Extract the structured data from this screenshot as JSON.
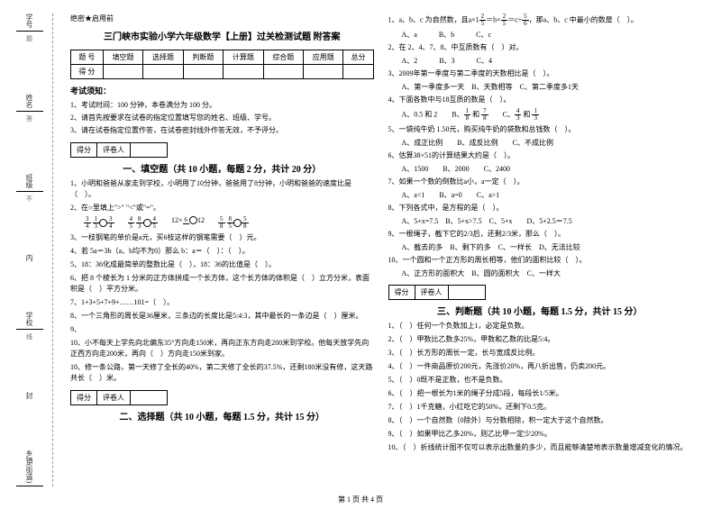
{
  "confidential": "绝密★启用前",
  "title": "三门峡市实验小学六年级数学【上册】过关检测试题 附答案",
  "scoreTable": {
    "headers": [
      "题 号",
      "填空题",
      "选择题",
      "判断题",
      "计算题",
      "综合题",
      "应用题",
      "总分"
    ],
    "row2": "得 分"
  },
  "noticeTitle": "考试须知：",
  "notices": [
    "1、考试时间：100 分钟，本卷满分为 100 分。",
    "2、请首先按要求在试卷的指定位置填写您的姓名、班级、学号。",
    "3、请在试卷指定位置作答，在试卷密封线外作答无效，不予评分。"
  ],
  "scorerLabels": {
    "a": "得分",
    "b": "评卷人"
  },
  "section1": "一、填空题（共 10 小题，每题 2 分，共计 20 分）",
  "q1_1": "1、小明和爸爸从家走到学校，小明用了10分钟，爸爸用了8分钟，小明和爸爸的速度比是（　）。",
  "q1_2": "2、在○里填上\">\" \"<\"或\"=\"。",
  "q1_3": "3、一枝钢笔的单价是a元，买6枝这样的钢笔需要（　）元。",
  "q1_4": "4、若 5a＝3b（a、b均不为0）那么 b：a＝（　）：（　）。",
  "q1_5": "5、18：36化成最简单的整数比是（　），18：36的比值是（　）。",
  "q1_6": "6、把 8 个棱长为 1 分米的正方体拼成一个长方体，这个长方体的体积是（　）立方分米，表面积是（　）平方分米。",
  "q1_7": "7、1+3+5+7+9+……101=（　）。",
  "q1_8": "8、一个三角形的周长是36厘米，三条边的长度比是5:4:3，其中最长的一条边是（　）厘米。",
  "q1_9": "9、",
  "q1_10a": "10、小不每天上学先向北偏东35°方向走150米，再向正东方向走200米到学校。他每天放学先向正西方向走200米，再向（　）方向走150米到家。",
  "q1_10b": "10、修一条公路，第一天修了全长的40%，第二天修了全长的37.5%，还剩180米没有修，这天路共长（　）米。",
  "section2": "二、选择题（共 10 小题，每题 1.5 分，共计 15 分）",
  "q2_1": "1、a、b、c 为自然数，且a×1",
  "q2_1b": "，那a、b、c 中最小的数是（　）。",
  "q2_1opts": "A、a　　　B、b　　　C、c",
  "q2_2": "2、在 2、4、7、8、中互质数有（　）对。",
  "q2_2opts": "A、2　　　B、3　　　C、4",
  "q2_3": "3、2009年第一季度与第二季度的天数相比是（　）。",
  "q2_3opts": "A、第一季度多一天　B、天数相等　C、第二季度多1天",
  "q2_4": "4、下面各数中与18互质的数是（　）。",
  "q2_5": "5、一袋纯牛奶 1.50元，购买纯牛奶的袋数和总钱数（　）。",
  "q2_5opts": "A、成正比例　　B、成反比例　　C、不成比例",
  "q2_6": "6、估算38×51的计算结果大约是（　）。",
  "q2_6opts": "A、1500　　B、2000　　C、2400",
  "q2_7": "7、如果一个数的倒数比a小，a一定（　）。",
  "q2_7opts": "A、a<1　　B、a=0　　C、a>1",
  "q2_8": "8、下列各式中，是方程的是（　）。",
  "q2_8opts": "A、5+x=7.5　B、5+x>7.5　C、5+x　　D、5+2.5＝7.5",
  "q2_9": "9、一根绳子，截下它的2/3后，还剩2/3米，那么（　）。",
  "q2_9opts": "A、截去的多　B、剩下的多　C、一样长　D、无法比较",
  "q2_10": "10、一个圆和一个正方形的周长相等，他们的面积比较（　）。",
  "q2_10opts": "A、正方形的面积大　B、圆的面积大　C、一样大",
  "section3": "三、判断题（共 10 小题，每题 1.5 分，共计 15 分）",
  "q3_1": "1、（　）任何一个负数加上1，必定是负数。",
  "q3_2": "2、（　）甲数比乙数多25%，甲数和乙数的比是5:4。",
  "q3_3": "3、（　）长方形的周长一定，长与宽成反比例。",
  "q3_4": "4、（　）一件商品原价200元，先涨价20%，再八折出售，仍卖200元。",
  "q3_5": "5、（　）0既不是正数，也不是负数。",
  "q3_6": "6、（　）把一根长为1米的绳子分成5段，每段长1/5米。",
  "q3_7": "7、（　）1千克糖，小红吃它的50%，还剩下0.5克。",
  "q3_8": "8、（　）一个自然数（0除外）与分数相除，积一定大于这个自然数。",
  "q3_9": "9、（　）如果甲比乙多20%，则乙比甲一定少20%。",
  "q3_10": "10、（　）折线统计图不仅可以表示出数量的多少，而且能够清楚地表示数量增减变化的情况。",
  "footer": "第 1 页 共 4 页",
  "side": {
    "xuehao": "学号",
    "xingming": "姓名",
    "banji": "班级",
    "xuexiao": "学校",
    "xiangzhen": "乡镇(街道)",
    "ti": "题",
    "da": "答",
    "nei": "内",
    "xian": "线",
    "feng": "封"
  },
  "fracRow": [
    {
      "a": "3",
      "b": "4",
      "op": "",
      "c": "1",
      "d": "3",
      "e": "3",
      "f": "4"
    },
    {
      "a": "4",
      "b": "5",
      "op": "",
      "c": "8",
      "d": "3",
      "e": "4",
      "f": "5"
    },
    {
      "a": "",
      "b": "",
      "op": "12×",
      "c": "6",
      "d": "",
      "e": "",
      "f": "12"
    },
    {
      "a": "5",
      "b": "8",
      "op": "",
      "c": "8",
      "d": "5",
      "e": "5",
      "f": "8"
    }
  ],
  "q2_4opts": {
    "a": "A、0.5 和 2",
    "b": "B、",
    "c": "C、"
  },
  "frac_q2_4": [
    {
      "n": "1",
      "d": "8"
    },
    {
      "n": "7",
      "d": "8"
    },
    {
      "n": "4",
      "d": "3"
    },
    {
      "n": "1",
      "d": "3"
    }
  ],
  "frac_q2_1": [
    {
      "n": "2",
      "d": "5"
    },
    {
      "n": "2",
      "d": "5"
    },
    {
      "n": "5",
      "d": "6"
    }
  ]
}
